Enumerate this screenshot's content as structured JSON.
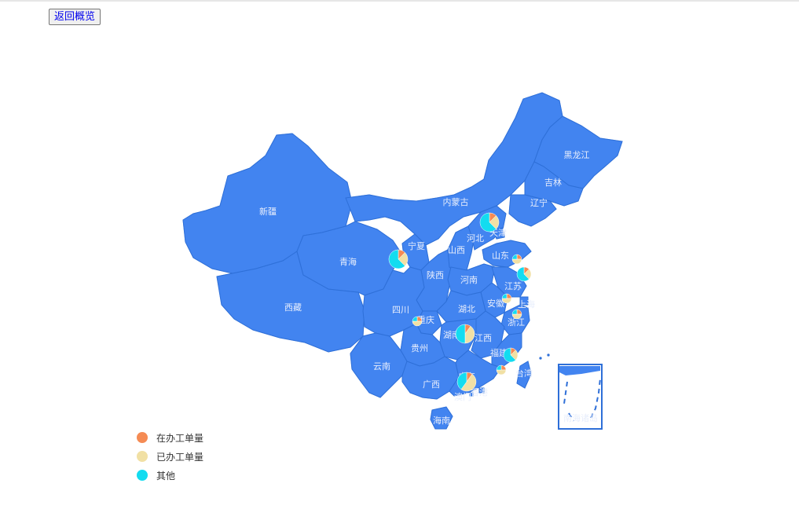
{
  "button": {
    "back_label": "返回概览"
  },
  "colors": {
    "province": "#4284f0",
    "province_edge": "#2e6fd8",
    "shadow": "#1e5fd8",
    "label": "#e8eefc"
  },
  "provinces": [
    {
      "name": "新疆"
    },
    {
      "name": "西藏"
    },
    {
      "name": "青海"
    },
    {
      "name": "内蒙古"
    },
    {
      "name": "黑龙江"
    },
    {
      "name": "吉林"
    },
    {
      "name": "辽宁"
    },
    {
      "name": "宁夏"
    },
    {
      "name": "陕西"
    },
    {
      "name": "山西"
    },
    {
      "name": "河北"
    },
    {
      "name": "天津"
    },
    {
      "name": "山东"
    },
    {
      "name": "河南"
    },
    {
      "name": "江苏"
    },
    {
      "name": "安徽"
    },
    {
      "name": "上海"
    },
    {
      "name": "湖北"
    },
    {
      "name": "浙江"
    },
    {
      "name": "四川"
    },
    {
      "name": "重庆"
    },
    {
      "name": "湖南"
    },
    {
      "name": "江西"
    },
    {
      "name": "贵州"
    },
    {
      "name": "福建"
    },
    {
      "name": "云南"
    },
    {
      "name": "广西"
    },
    {
      "name": "广东"
    },
    {
      "name": "台湾"
    },
    {
      "name": "香港"
    },
    {
      "name": "澳门"
    },
    {
      "name": "海南"
    },
    {
      "name": "南海诸岛"
    }
  ],
  "series": [
    {
      "name": "在办工单量",
      "color": "#f58b54"
    },
    {
      "name": "已办工单量",
      "color": "#f1e0a4"
    },
    {
      "name": "其他",
      "color": "#13dcf0"
    }
  ],
  "pies": [
    {
      "province": "河北",
      "values": [
        1,
        2,
        5
      ]
    },
    {
      "province": "宁夏",
      "values": [
        1,
        2,
        5
      ]
    },
    {
      "province": "山东",
      "values": [
        1,
        2,
        1
      ]
    },
    {
      "province": "江苏",
      "values": [
        1,
        2,
        5
      ]
    },
    {
      "province": "安徽",
      "values": [
        1,
        2,
        1
      ]
    },
    {
      "province": "上海",
      "values": [
        1,
        2,
        1
      ]
    },
    {
      "province": "重庆",
      "values": [
        1,
        2,
        1
      ]
    },
    {
      "province": "湖南",
      "values": [
        1,
        4,
        5
      ]
    },
    {
      "province": "福建",
      "values": [
        1,
        2,
        5
      ]
    },
    {
      "province": "广东东部",
      "values": [
        1,
        2,
        1
      ]
    },
    {
      "province": "广东",
      "values": [
        1,
        5,
        4
      ]
    }
  ]
}
